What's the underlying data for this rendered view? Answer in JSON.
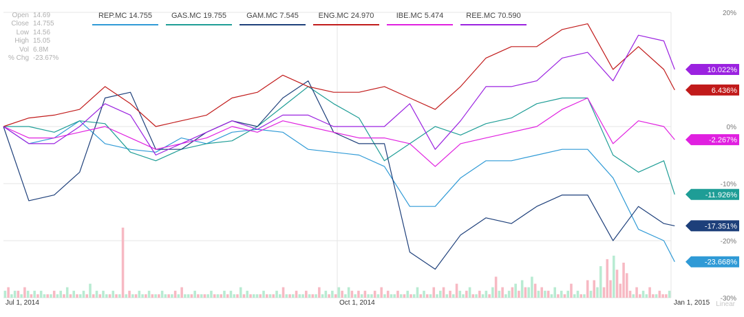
{
  "ohlc": [
    {
      "label": "Open",
      "value": "14.69"
    },
    {
      "label": "Close",
      "value": "14.755"
    },
    {
      "label": "Low",
      "value": "14.56"
    },
    {
      "label": "High",
      "value": "15.05"
    },
    {
      "label": "Vol",
      "value": "6.8M"
    },
    {
      "label": "% Chg",
      "value": "-23.67%"
    }
  ],
  "legend": [
    {
      "text": "REP.MC 14.755",
      "color": "#2f9ad6"
    },
    {
      "text": "GAS.MC 19.755",
      "color": "#1e9d96"
    },
    {
      "text": "GAM.MC 7.545",
      "color": "#1d3f7a"
    },
    {
      "text": "ENG.MC 24.970",
      "color": "#c11a1a"
    },
    {
      "text": "IBE.MC 5.474",
      "color": "#e020e0"
    },
    {
      "text": "REE.MC 70.590",
      "color": "#9b22e0"
    }
  ],
  "chart_data": {
    "type": "line",
    "scale": "Linear",
    "grid": true,
    "ylim": [
      -30,
      20
    ],
    "y_ticks": [
      20,
      0,
      -10,
      -20,
      -30
    ],
    "y_tick_labels": [
      "20%",
      "0%",
      "-10%",
      "-20%",
      "-30%"
    ],
    "x_tick_labels": [
      {
        "label": "Jul 1, 2014",
        "date": "2014-07-01"
      },
      {
        "label": "Oct 1, 2014",
        "date": "2014-10-01"
      },
      {
        "label": "Jan 1, 2015",
        "date": "2015-01-01"
      }
    ],
    "x": [
      "2014-07-01",
      "2014-07-08",
      "2014-07-15",
      "2014-07-22",
      "2014-07-29",
      "2014-08-05",
      "2014-08-12",
      "2014-08-19",
      "2014-08-26",
      "2014-09-02",
      "2014-09-09",
      "2014-09-16",
      "2014-09-23",
      "2014-09-30",
      "2014-10-07",
      "2014-10-14",
      "2014-10-21",
      "2014-10-28",
      "2014-11-04",
      "2014-11-11",
      "2014-11-18",
      "2014-11-25",
      "2014-12-02",
      "2014-12-09",
      "2014-12-16",
      "2014-12-23",
      "2014-12-30",
      "2015-01-02"
    ],
    "series": [
      {
        "name": "REP.MC",
        "color": "#2f9ad6",
        "end_label": "-23.668%",
        "values": [
          0,
          -3,
          -2,
          1,
          -3,
          -4,
          -4.5,
          -2,
          -3,
          -1,
          -0.5,
          -1,
          -4,
          -4.5,
          -5,
          -7,
          -14,
          -14,
          -9,
          -6,
          -6,
          -5,
          -4,
          -4,
          -9,
          -18,
          -20,
          -23.7
        ]
      },
      {
        "name": "GAS.MC",
        "color": "#1e9d96",
        "end_label": "-11.926%",
        "values": [
          0,
          0,
          -1,
          1,
          0.5,
          -4.5,
          -6,
          -4,
          -3,
          -2.5,
          0,
          3.5,
          7,
          4,
          1.5,
          -6,
          -3,
          0,
          -1.5,
          0.5,
          1.5,
          4,
          5,
          5,
          -5,
          -8,
          -6,
          -11.9
        ]
      },
      {
        "name": "GAM.MC",
        "color": "#1d3f7a",
        "end_label": "-17.351%",
        "values": [
          0,
          -13,
          -12,
          -8,
          5,
          6,
          -4,
          -4,
          -1,
          1,
          0,
          5,
          8,
          -1,
          -3,
          -3,
          -22,
          -25,
          -19,
          -16,
          -17,
          -14,
          -12,
          -12,
          -20,
          -14,
          -17,
          -17.4
        ]
      },
      {
        "name": "ENG.MC",
        "color": "#c11a1a",
        "end_label": "6.436%",
        "values": [
          0,
          1.5,
          2,
          3,
          7,
          4,
          0,
          1,
          2,
          5,
          6,
          9,
          7,
          6,
          6,
          7,
          5,
          3,
          7,
          12,
          14,
          14,
          17,
          18,
          10,
          14,
          10,
          6.4
        ]
      },
      {
        "name": "IBE.MC",
        "color": "#e020e0",
        "end_label": "-2.267%",
        "values": [
          0,
          -2,
          -2,
          -1,
          0,
          -2,
          -4,
          -3,
          -2,
          0,
          -1,
          1,
          0,
          -1,
          -2,
          -2,
          -3,
          -7,
          -3,
          -2,
          -1,
          0,
          3,
          5,
          -3,
          1,
          0,
          -2.3
        ]
      },
      {
        "name": "REE.MC",
        "color": "#9b22e0",
        "end_label": "10.022%",
        "values": [
          0,
          -3,
          -3,
          0,
          4,
          2,
          -5,
          -3,
          -1,
          1,
          -0.5,
          2,
          2,
          0,
          0,
          0,
          4,
          -4,
          1,
          7,
          7,
          8,
          12,
          13,
          8,
          16,
          15,
          10
        ]
      }
    ],
    "volume": {
      "up_color": "#b8ebd2",
      "down_color": "#f7b9c3",
      "values": [
        2,
        3,
        1,
        2,
        2,
        1,
        3,
        2,
        1,
        2,
        1,
        2,
        1,
        1,
        1,
        2,
        1,
        2,
        1,
        3,
        1,
        2,
        1,
        1,
        2,
        1,
        4,
        1,
        2,
        1,
        2,
        1,
        1,
        2,
        1,
        1,
        20,
        1,
        2,
        1,
        1,
        2,
        1,
        1,
        2,
        1,
        1,
        1,
        2,
        1,
        1,
        1,
        2,
        1,
        3,
        1,
        1,
        1,
        2,
        1,
        1,
        1,
        1,
        2,
        1,
        1,
        1,
        2,
        1,
        2,
        1,
        1,
        3,
        1,
        2,
        1,
        1,
        1,
        1,
        2,
        1,
        1,
        1,
        2,
        1,
        3,
        1,
        1,
        1,
        2,
        1,
        1,
        2,
        1,
        1,
        1,
        3,
        1,
        2,
        1,
        2,
        1,
        3,
        2,
        1,
        3,
        2,
        1,
        2,
        1,
        2,
        1,
        1,
        2,
        1,
        3,
        1,
        2,
        1,
        1,
        2,
        1,
        1,
        2,
        1,
        1,
        3,
        1,
        2,
        1,
        1,
        3,
        1,
        2,
        3,
        1,
        2,
        1,
        4,
        2,
        1,
        2,
        3,
        1,
        1,
        2,
        1,
        2,
        1,
        3,
        6,
        2,
        3,
        1,
        2,
        3,
        4,
        2,
        5,
        3,
        3,
        6,
        4,
        2,
        3,
        2,
        2,
        1,
        3,
        1,
        2,
        1,
        2,
        4,
        1,
        2,
        1,
        1,
        5,
        2,
        5,
        3,
        9,
        3,
        11,
        5,
        12,
        8,
        4,
        10,
        7,
        2,
        1,
        3,
        1,
        2,
        1,
        3,
        1,
        1,
        2,
        1,
        1,
        2
      ],
      "direction": [
        1,
        0,
        1,
        1,
        0,
        1,
        0,
        1,
        0,
        1,
        0,
        1,
        1,
        0,
        1,
        0,
        1,
        1,
        0,
        1,
        0,
        1,
        0,
        1,
        1,
        0,
        1,
        0,
        1,
        0,
        1,
        1,
        0,
        1,
        0,
        1,
        0,
        1,
        0,
        1,
        0,
        1,
        1,
        0,
        1,
        0,
        1,
        0,
        1,
        1,
        0,
        1,
        0,
        1,
        0,
        1,
        1,
        0,
        1,
        0,
        1,
        0,
        1,
        1,
        0,
        1,
        0,
        1,
        0,
        1,
        1,
        0,
        1,
        0,
        1,
        0,
        1,
        1,
        0,
        1,
        0,
        1,
        0,
        1,
        1,
        0,
        1,
        0,
        1,
        0,
        1,
        1,
        0,
        1,
        0,
        1,
        0,
        1,
        1,
        0,
        1,
        0,
        1,
        0,
        1,
        1,
        0,
        1,
        0,
        1,
        0,
        1,
        1,
        0,
        1,
        0,
        1,
        0,
        1,
        1,
        0,
        1,
        0,
        1,
        0,
        1,
        1,
        0,
        1,
        0,
        1,
        0,
        1,
        1,
        0,
        1,
        0,
        1,
        0,
        1,
        1,
        0,
        1,
        0,
        1,
        0,
        1,
        1,
        0,
        1,
        0,
        1,
        0,
        1,
        1,
        0,
        1,
        0,
        1,
        0,
        1,
        1,
        0,
        1,
        0,
        1,
        0,
        1,
        1,
        0,
        1,
        0,
        1,
        0,
        1,
        1,
        0,
        1,
        0,
        1,
        0,
        1,
        1,
        0,
        0,
        0,
        1,
        0,
        0,
        0,
        0,
        0,
        1,
        0,
        0,
        1,
        1,
        0,
        0,
        1,
        0,
        0,
        0,
        1,
        0,
        0,
        0,
        0
      ]
    }
  }
}
